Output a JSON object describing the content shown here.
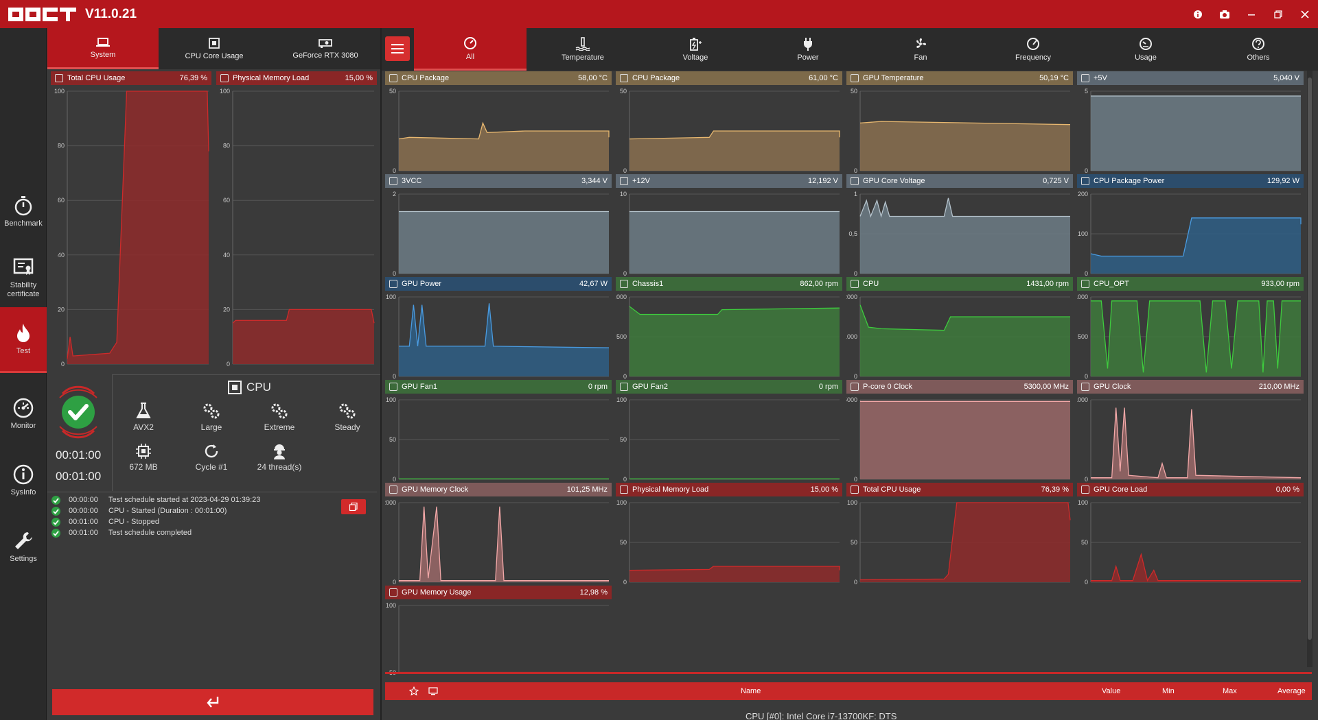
{
  "app": {
    "version": "V11.0.21"
  },
  "sidebar": [
    {
      "label": "Benchmark",
      "icon": "stopwatch-icon"
    },
    {
      "label": "Stability certificate",
      "icon": "certificate-icon"
    },
    {
      "label": "Test",
      "icon": "flame-icon"
    },
    {
      "label": "Monitor",
      "icon": "gauge-icon"
    },
    {
      "label": "SysInfo",
      "icon": "info-icon"
    },
    {
      "label": "Settings",
      "icon": "wrench-icon"
    }
  ],
  "left_tabs": [
    "System",
    "CPU Core Usage",
    "GeForce RTX 3080"
  ],
  "left_graphs": [
    {
      "title": "Total CPU Usage",
      "value": "76,39 %",
      "yticks": [
        "100",
        "80",
        "60",
        "40",
        "20",
        "0"
      ]
    },
    {
      "title": "Physical Memory Load",
      "value": "15,00 %",
      "yticks": [
        "100",
        "80",
        "60",
        "40",
        "20",
        "0"
      ]
    }
  ],
  "test": {
    "name": "CPU",
    "features": [
      "AVX2",
      "Large",
      "Extreme",
      "Steady",
      "672 MB",
      "Cycle #1",
      "24 thread(s)"
    ],
    "elapsed": "00:01:00",
    "duration": "00:01:00"
  },
  "log": [
    {
      "time": "00:00:00",
      "text": "Test schedule started at 2023-04-29 01:39:23"
    },
    {
      "time": "00:00:00",
      "text": "CPU - Started (Duration : 00:01:00)"
    },
    {
      "time": "00:01:00",
      "text": "CPU - Stopped"
    },
    {
      "time": "00:01:00",
      "text": "Test schedule completed"
    }
  ],
  "right_tabs": [
    "All",
    "Temperature",
    "Voltage",
    "Power",
    "Fan",
    "Frequency",
    "Usage",
    "Others"
  ],
  "monitors": [
    {
      "title": "CPU Package",
      "value": "58,00 °C",
      "theme": "orange",
      "yticks": [
        "50",
        "0"
      ]
    },
    {
      "title": "CPU Package",
      "value": "61,00 °C",
      "theme": "orange",
      "yticks": [
        "50",
        "0"
      ]
    },
    {
      "title": "GPU Temperature",
      "value": "50,19 °C",
      "theme": "orange",
      "yticks": [
        "50",
        "0"
      ]
    },
    {
      "title": "+5V",
      "value": "5,040 V",
      "theme": "grey",
      "yticks": [
        "5",
        "0"
      ]
    },
    {
      "title": "3VCC",
      "value": "3,344 V",
      "theme": "grey",
      "yticks": [
        "2",
        "0"
      ]
    },
    {
      "title": "+12V",
      "value": "12,192 V",
      "theme": "grey",
      "yticks": [
        "10",
        "0"
      ]
    },
    {
      "title": "GPU Core Voltage",
      "value": "0,725 V",
      "theme": "grey",
      "yticks": [
        "1",
        "0,5",
        "0"
      ]
    },
    {
      "title": "CPU Package Power",
      "value": "129,92 W",
      "theme": "blue",
      "yticks": [
        "200",
        "100",
        "0"
      ]
    },
    {
      "title": "GPU Power",
      "value": "42,67 W",
      "theme": "blue",
      "yticks": [
        "100",
        "0"
      ]
    },
    {
      "title": "Chassis1",
      "value": "862,00 rpm",
      "theme": "green",
      "yticks": [
        "1000",
        "500",
        "0"
      ]
    },
    {
      "title": "CPU",
      "value": "1431,00 rpm",
      "theme": "green",
      "yticks": [
        "2000",
        "1000",
        "0"
      ]
    },
    {
      "title": "CPU_OPT",
      "value": "933,00 rpm",
      "theme": "green",
      "yticks": [
        "1000",
        "500",
        "0"
      ]
    },
    {
      "title": "GPU Fan1",
      "value": "0 rpm",
      "theme": "green",
      "yticks": [
        "100",
        "50",
        "0"
      ]
    },
    {
      "title": "GPU Fan2",
      "value": "0 rpm",
      "theme": "green",
      "yticks": [
        "100",
        "50",
        "0"
      ]
    },
    {
      "title": "P-core 0 Clock",
      "value": "5300,00 MHz",
      "theme": "pink",
      "yticks": [
        "5000",
        "0"
      ]
    },
    {
      "title": "GPU Clock",
      "value": "210,00 MHz",
      "theme": "pink",
      "yticks": [
        "1000",
        "0"
      ]
    },
    {
      "title": "GPU Memory Clock",
      "value": "101,25 MHz",
      "theme": "pink",
      "yticks": [
        "2000",
        "0"
      ]
    },
    {
      "title": "Physical Memory Load",
      "value": "15,00 %",
      "theme": "red",
      "yticks": [
        "100",
        "50",
        "0"
      ]
    },
    {
      "title": "Total CPU Usage",
      "value": "76,39 %",
      "theme": "red",
      "yticks": [
        "100",
        "50",
        "0"
      ]
    },
    {
      "title": "GPU Core Load",
      "value": "0,00 %",
      "theme": "red",
      "yticks": [
        "100",
        "50",
        "0"
      ]
    },
    {
      "title": "GPU Memory Usage",
      "value": "12,98 %",
      "theme": "red",
      "yticks": [
        "100",
        "50"
      ]
    }
  ],
  "table": {
    "headers": [
      "Name",
      "Value",
      "Min",
      "Max",
      "Average"
    ],
    "first_row": "CPU [#0]: Intel Core i7-13700KF: DTS"
  },
  "colors": {
    "accent": "#b5171d",
    "orange": "#e8b870",
    "grey": "#b5c3cc",
    "blue": "#4a9be0",
    "green": "#3ecb3e",
    "pink": "#f2a8a8",
    "red": "#cf2a2a"
  }
}
